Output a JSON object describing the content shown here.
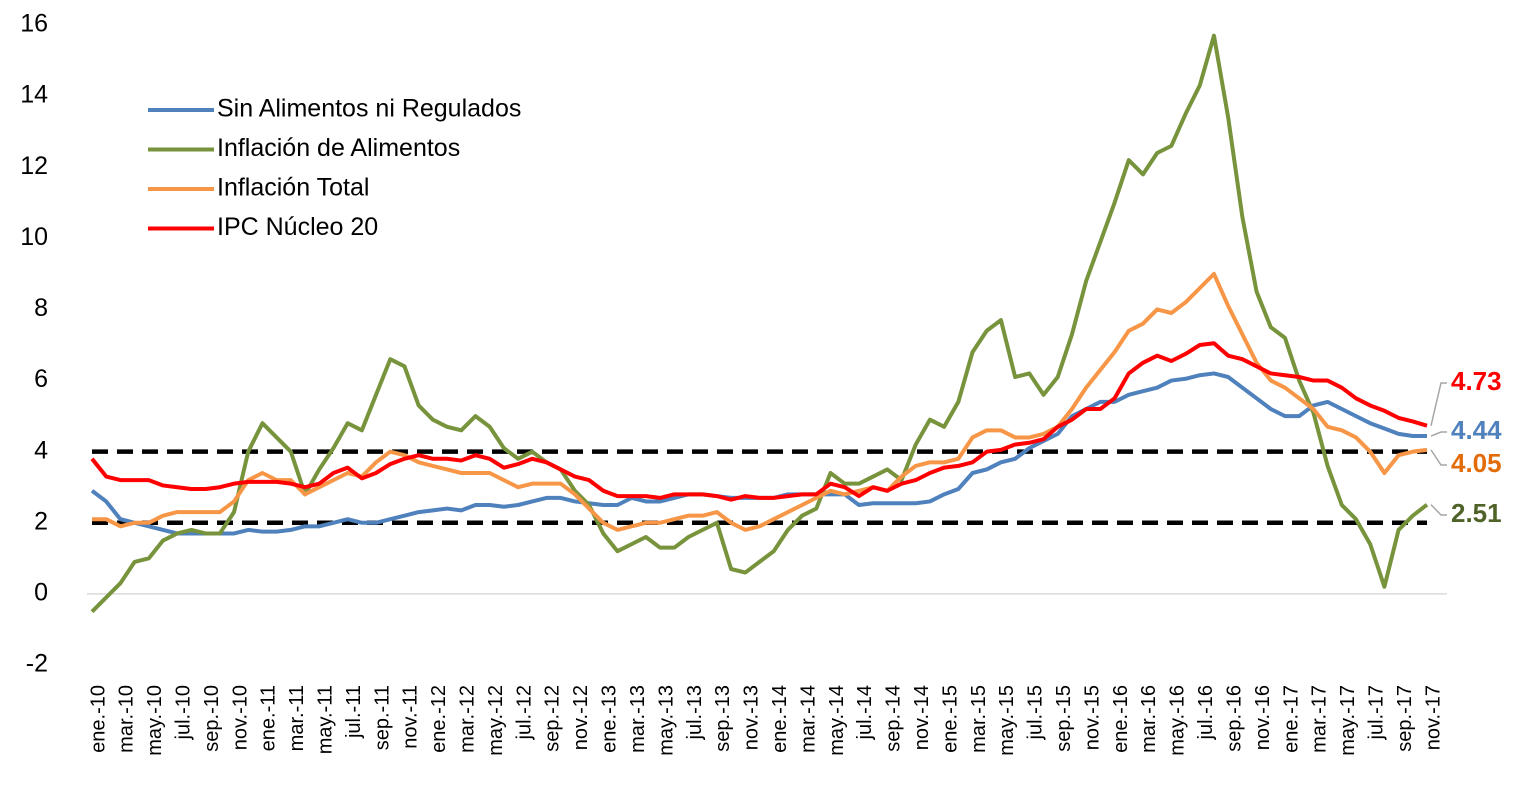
{
  "chart_data": {
    "type": "line",
    "categories": [
      "ene.-10",
      null,
      "mar.-10",
      null,
      "may.-10",
      null,
      "jul.-10",
      null,
      "sep.-10",
      null,
      "nov.-10",
      null,
      "ene.-11",
      null,
      "mar.-11",
      null,
      "may.-11",
      null,
      "jul.-11",
      null,
      "sep.-11",
      null,
      "nov.-11",
      null,
      "ene.-12",
      null,
      "mar.-12",
      null,
      "may.-12",
      null,
      "jul.-12",
      null,
      "sep.-12",
      null,
      "nov.-12",
      null,
      "ene.-13",
      null,
      "mar.-13",
      null,
      "may.-13",
      null,
      "jul.-13",
      null,
      "sep.-13",
      null,
      "nov.-13",
      null,
      "ene.-14",
      null,
      "mar.-14",
      null,
      "may.-14",
      null,
      "jul.-14",
      null,
      "sep.-14",
      null,
      "nov.-14",
      null,
      "ene.-15",
      null,
      "mar.-15",
      null,
      "may.-15",
      null,
      "jul.-15",
      null,
      "sep.-15",
      null,
      "nov.-15",
      null,
      "ene.-16",
      null,
      "mar.-16",
      null,
      "may.-16",
      null,
      "jul.-16",
      null,
      "sep.-16",
      null,
      "nov.-16",
      null,
      "ene.-17",
      null,
      "mar.-17",
      null,
      "may.-17",
      null,
      "jul.-17",
      null,
      "sep.-17",
      null,
      "nov.-17"
    ],
    "series": [
      {
        "name": "Sin Alimentos ni Regulados",
        "color": "#4f81bd",
        "values": [
          2.9,
          2.6,
          2.1,
          2.0,
          1.9,
          1.8,
          1.7,
          1.7,
          1.7,
          1.7,
          1.7,
          1.8,
          1.75,
          1.75,
          1.8,
          1.9,
          1.9,
          2.0,
          2.1,
          2.0,
          2.0,
          2.1,
          2.2,
          2.3,
          2.35,
          2.4,
          2.35,
          2.5,
          2.5,
          2.45,
          2.5,
          2.6,
          2.7,
          2.7,
          2.6,
          2.55,
          2.5,
          2.5,
          2.7,
          2.6,
          2.6,
          2.7,
          2.8,
          2.8,
          2.75,
          2.7,
          2.7,
          2.7,
          2.7,
          2.8,
          2.8,
          2.8,
          2.8,
          2.8,
          2.5,
          2.55,
          2.55,
          2.55,
          2.55,
          2.6,
          2.8,
          2.95,
          3.4,
          3.5,
          3.7,
          3.8,
          4.1,
          4.3,
          4.5,
          5.0,
          5.2,
          5.4,
          5.4,
          5.6,
          5.7,
          5.8,
          6.0,
          6.05,
          6.15,
          6.2,
          6.1,
          5.8,
          5.5,
          5.2,
          5.0,
          5.0,
          5.3,
          5.4,
          5.2,
          5.0,
          4.8,
          4.65,
          4.5,
          4.44,
          4.44
        ]
      },
      {
        "name": "Inflación de Alimentos",
        "color": "#77933c",
        "values": [
          -0.5,
          -0.1,
          0.3,
          0.9,
          1.0,
          1.5,
          1.7,
          1.8,
          1.7,
          1.7,
          2.3,
          4.0,
          4.8,
          4.4,
          4.0,
          2.8,
          3.5,
          4.1,
          4.8,
          4.6,
          5.6,
          6.6,
          6.4,
          5.3,
          4.9,
          4.7,
          4.6,
          5.0,
          4.7,
          4.1,
          3.8,
          4.0,
          3.7,
          3.5,
          2.9,
          2.5,
          1.7,
          1.2,
          1.4,
          1.6,
          1.3,
          1.3,
          1.6,
          1.8,
          2.0,
          0.7,
          0.6,
          0.9,
          1.2,
          1.8,
          2.2,
          2.4,
          3.4,
          3.1,
          3.1,
          3.3,
          3.5,
          3.2,
          4.2,
          4.9,
          4.7,
          5.4,
          6.8,
          7.4,
          7.7,
          6.1,
          6.2,
          5.6,
          6.1,
          7.3,
          8.8,
          9.9,
          11.0,
          12.2,
          11.8,
          12.4,
          12.6,
          13.5,
          14.3,
          15.7,
          13.4,
          10.6,
          8.5,
          7.5,
          7.2,
          6.0,
          5.1,
          3.6,
          2.5,
          2.1,
          1.4,
          0.2,
          1.8,
          2.2,
          2.51
        ]
      },
      {
        "name": "Inflación Total",
        "color": "#f79646",
        "values": [
          2.1,
          2.1,
          1.9,
          2.0,
          2.0,
          2.2,
          2.3,
          2.3,
          2.3,
          2.3,
          2.6,
          3.2,
          3.4,
          3.2,
          3.2,
          2.8,
          3.0,
          3.2,
          3.4,
          3.3,
          3.7,
          4.0,
          3.9,
          3.7,
          3.6,
          3.5,
          3.4,
          3.4,
          3.4,
          3.2,
          3.0,
          3.1,
          3.1,
          3.1,
          2.8,
          2.4,
          2.0,
          1.8,
          1.9,
          2.0,
          2.0,
          2.1,
          2.2,
          2.2,
          2.3,
          2.0,
          1.8,
          1.9,
          2.1,
          2.3,
          2.5,
          2.7,
          2.9,
          2.8,
          2.9,
          3.0,
          2.9,
          3.3,
          3.6,
          3.7,
          3.7,
          3.8,
          4.4,
          4.6,
          4.6,
          4.4,
          4.4,
          4.5,
          4.7,
          5.2,
          5.8,
          6.3,
          6.8,
          7.4,
          7.6,
          8.0,
          7.9,
          8.2,
          8.6,
          9.0,
          8.1,
          7.3,
          6.5,
          6.0,
          5.8,
          5.5,
          5.2,
          4.7,
          4.6,
          4.4,
          4.0,
          3.4,
          3.9,
          4.0,
          4.05
        ]
      },
      {
        "name": "IPC Núcleo 20",
        "color": "#ff0000",
        "values": [
          3.8,
          3.3,
          3.2,
          3.2,
          3.2,
          3.05,
          3.0,
          2.95,
          2.95,
          3.0,
          3.1,
          3.15,
          3.15,
          3.15,
          3.1,
          3.0,
          3.1,
          3.4,
          3.55,
          3.25,
          3.4,
          3.65,
          3.8,
          3.9,
          3.8,
          3.8,
          3.75,
          3.9,
          3.8,
          3.55,
          3.65,
          3.8,
          3.7,
          3.5,
          3.3,
          3.2,
          2.9,
          2.75,
          2.75,
          2.75,
          2.7,
          2.8,
          2.8,
          2.8,
          2.75,
          2.65,
          2.75,
          2.7,
          2.7,
          2.75,
          2.8,
          2.8,
          3.1,
          3.0,
          2.75,
          3.0,
          2.9,
          3.1,
          3.2,
          3.4,
          3.55,
          3.6,
          3.7,
          4.0,
          4.05,
          4.2,
          4.25,
          4.35,
          4.7,
          4.9,
          5.2,
          5.2,
          5.5,
          6.2,
          6.5,
          6.7,
          6.55,
          6.75,
          7.0,
          7.05,
          6.7,
          6.6,
          6.4,
          6.2,
          6.15,
          6.1,
          6.0,
          6.0,
          5.8,
          5.5,
          5.3,
          5.15,
          4.95,
          4.85,
          4.73
        ]
      }
    ],
    "reference_lines": [
      2,
      4
    ],
    "ylim": [
      -2,
      16
    ],
    "yticks": [
      -2,
      0,
      2,
      4,
      6,
      8,
      10,
      12,
      14,
      16
    ],
    "grid": false,
    "legend": "upper left"
  }
}
